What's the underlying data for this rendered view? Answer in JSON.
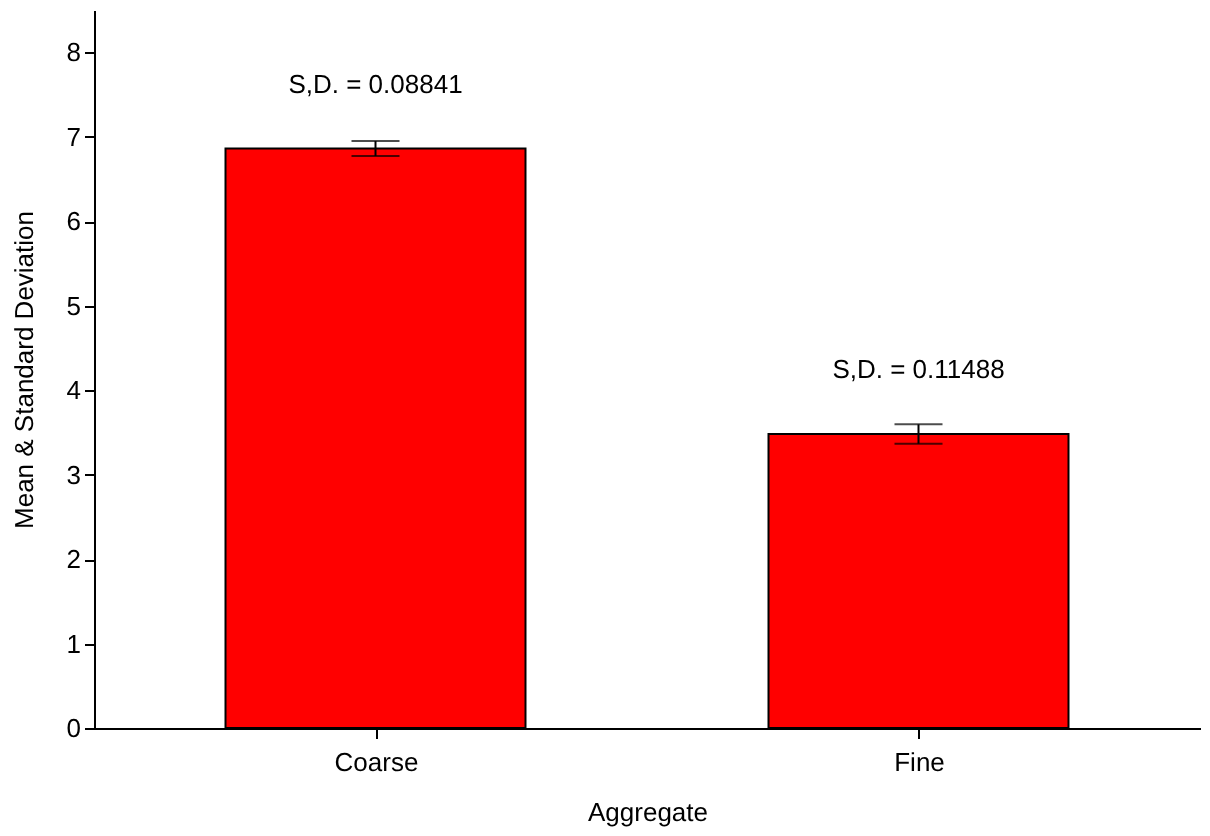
{
  "chart_data": {
    "type": "bar",
    "xlabel": "Aggregate",
    "ylabel": "Mean & Standard Deviation",
    "categories": [
      "Coarse",
      "Fine"
    ],
    "values": [
      6.86,
      3.48
    ],
    "errors": [
      0.08841,
      0.11488
    ],
    "color": "#ff0000",
    "ylim": [
      0,
      8.5
    ],
    "yticks": [
      0,
      1,
      2,
      3,
      4,
      5,
      6,
      7,
      8
    ],
    "grid": false,
    "annotations": [
      {
        "text": "S,D. = 0.08841",
        "x": "Coarse",
        "y": 6.86
      },
      {
        "text": "S,D. = 0.11488",
        "x": "Fine",
        "y": 3.48
      }
    ]
  }
}
